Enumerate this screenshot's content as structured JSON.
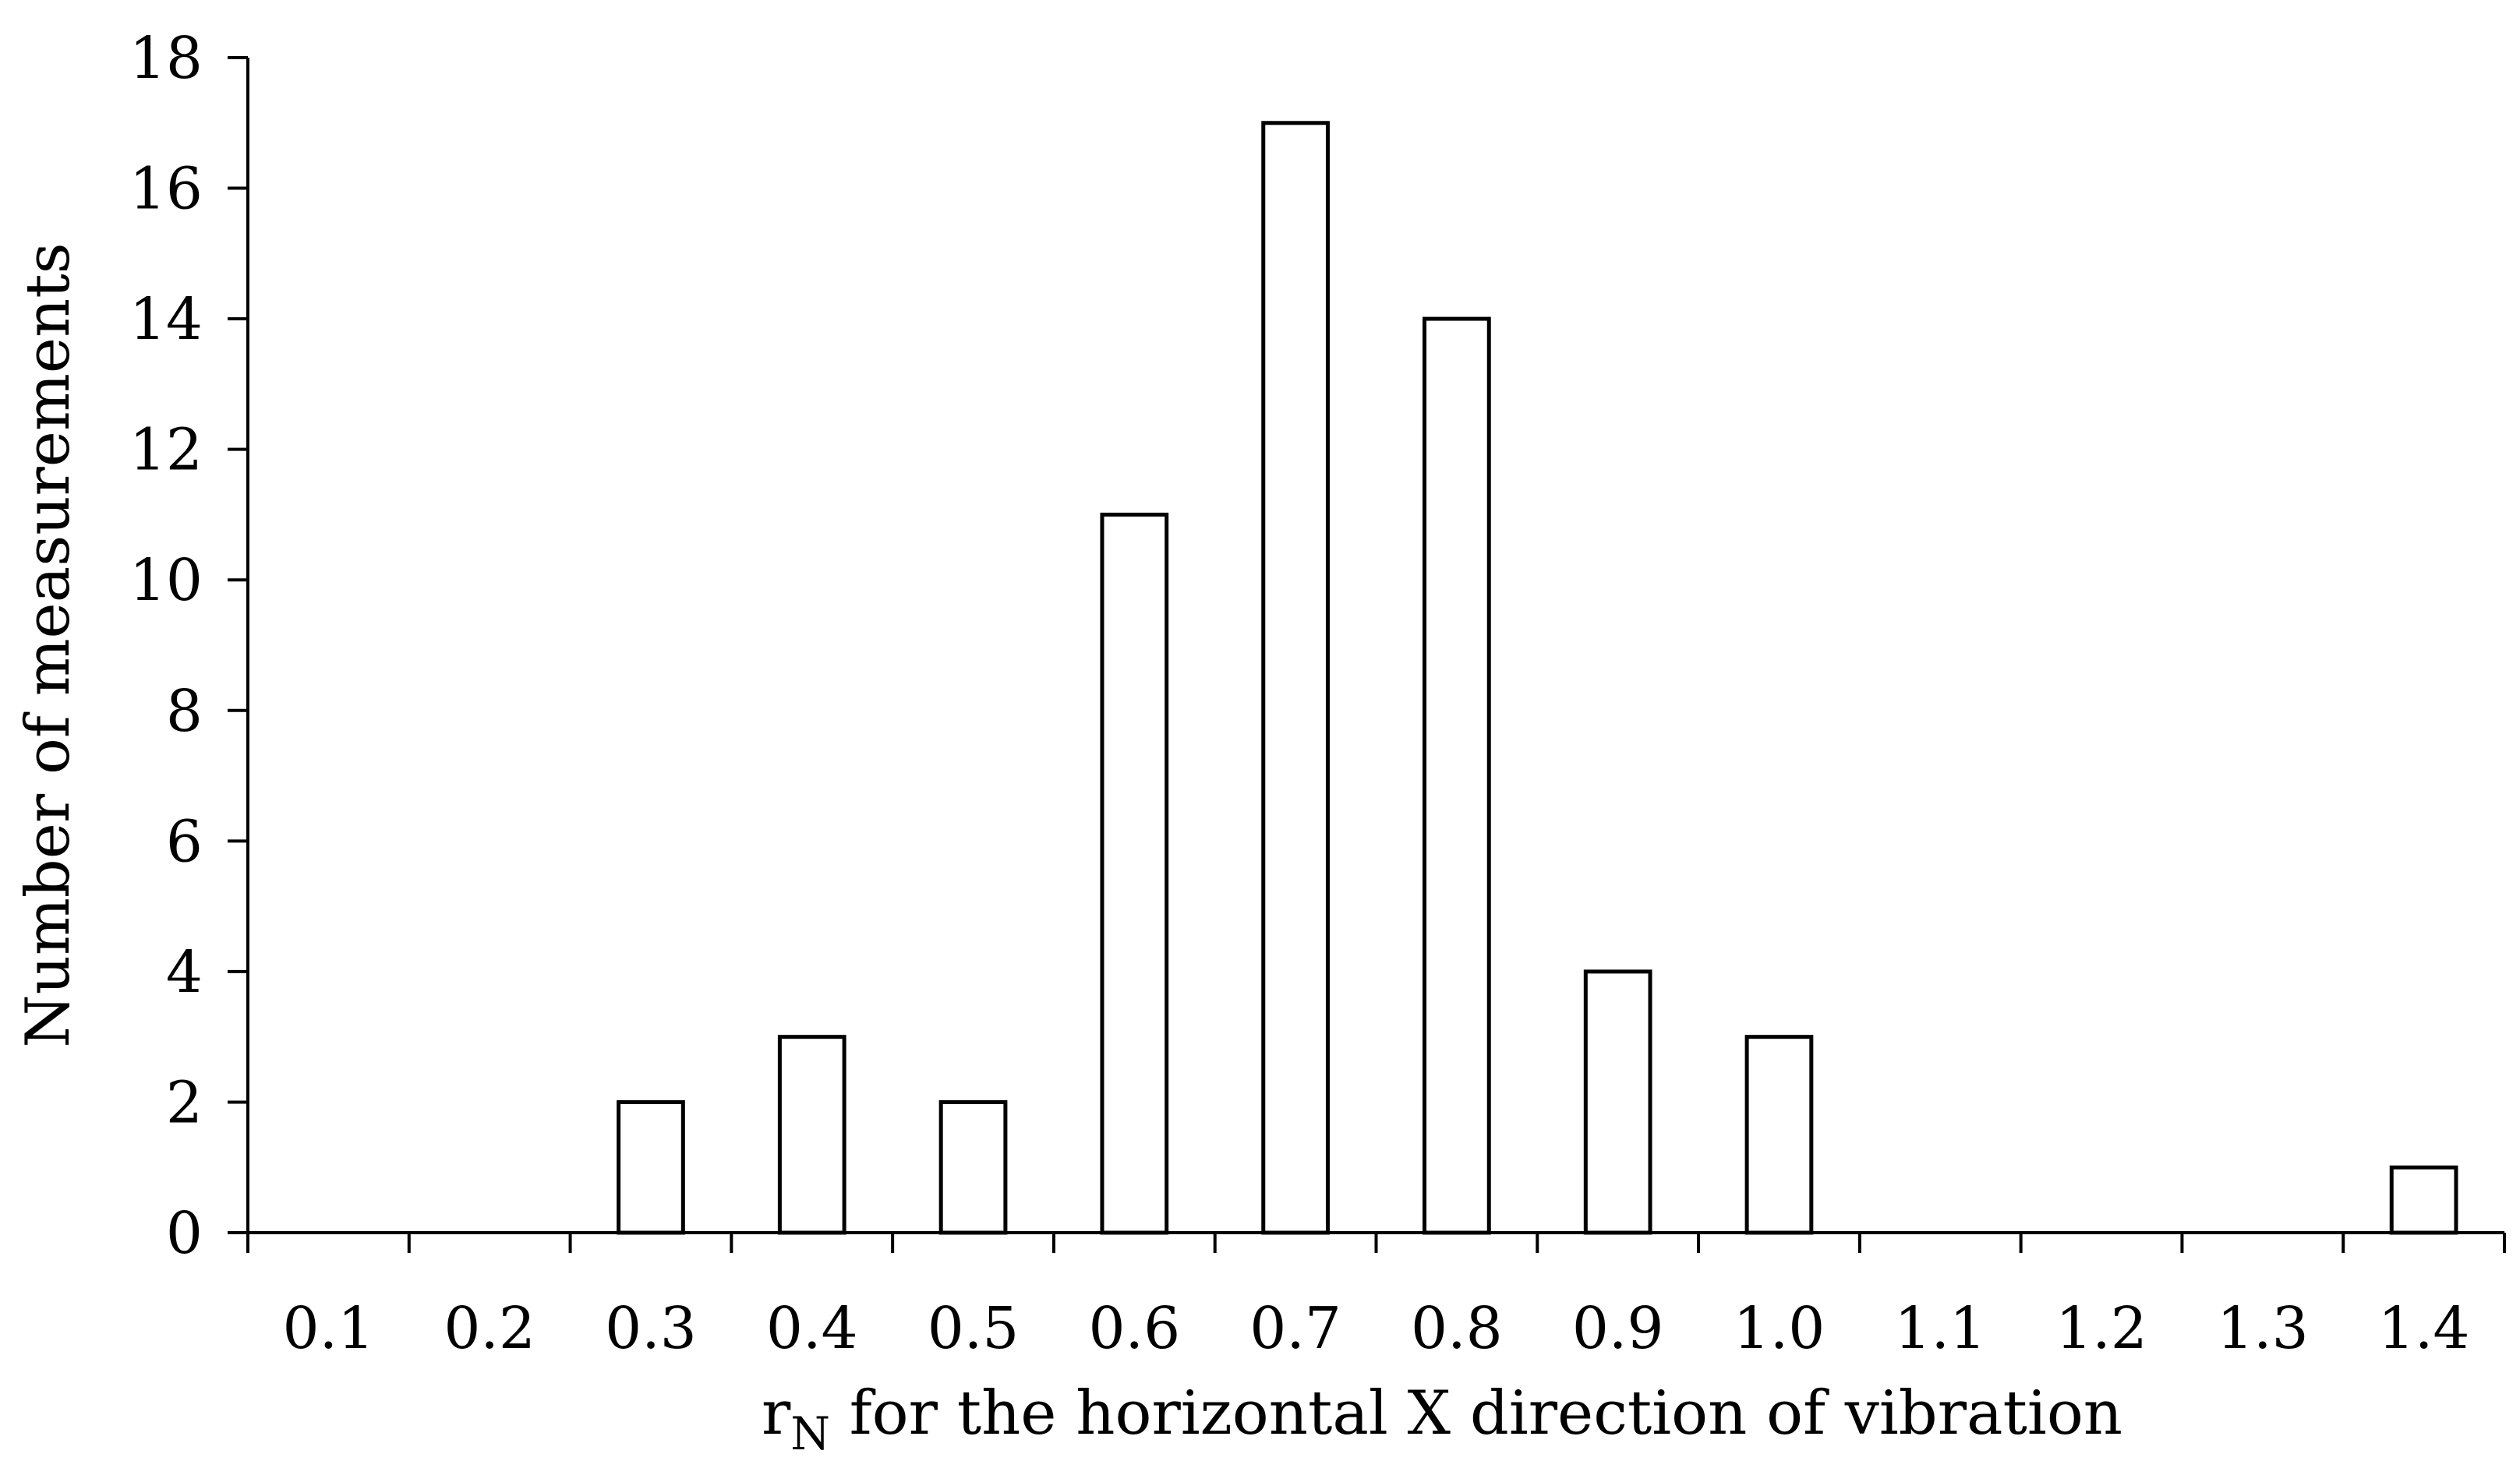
{
  "chart_data": {
    "type": "bar",
    "categories": [
      "0.1",
      "0.2",
      "0.3",
      "0.4",
      "0.5",
      "0.6",
      "0.7",
      "0.8",
      "0.9",
      "1.0",
      "1.1",
      "1.2",
      "1.3",
      "1.4"
    ],
    "values": [
      0,
      0,
      2,
      3,
      2,
      11,
      17,
      14,
      4,
      3,
      0,
      0,
      0,
      1
    ],
    "xlabel_main": "r",
    "xlabel_subscript": "N",
    "xlabel_rest": " for the horizontal X direction of vibration",
    "ylabel": "Number of measurements",
    "ylim": [
      0,
      18
    ],
    "yticks": [
      "0",
      "2",
      "4",
      "6",
      "8",
      "10",
      "12",
      "14",
      "16",
      "18"
    ],
    "grid": false,
    "legend": "none",
    "bar_fill": "#ffffff",
    "bar_stroke": "#000000",
    "axis_color": "#000000"
  }
}
